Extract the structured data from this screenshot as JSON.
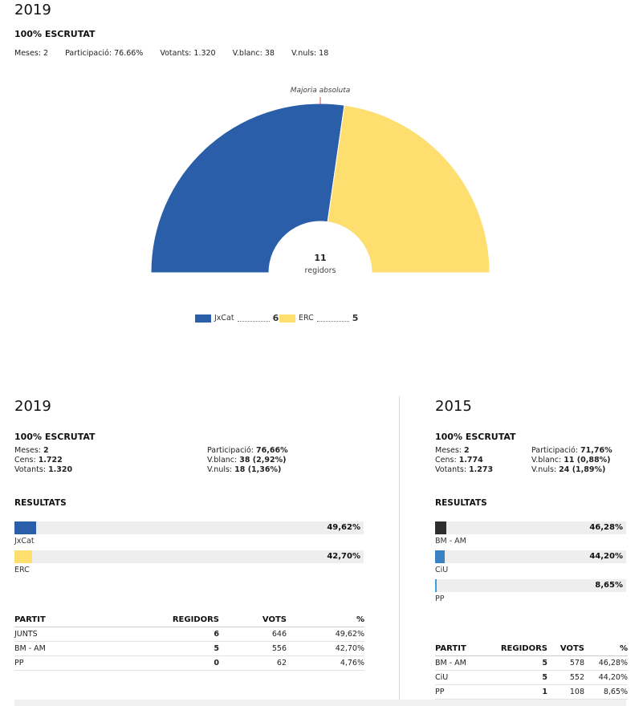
{
  "top": {
    "year": "2019",
    "escrutat": "100% ESCRUTAT",
    "stats": [
      "Meses: 2",
      "Participació: 76.66%",
      "Votants: 1.320",
      "V.blanc: 38",
      "V.nuls: 18"
    ]
  },
  "chart_data": {
    "type": "pie",
    "subtype": "hemicycle",
    "majority_label": "Majoria absoluta",
    "center_value": "11",
    "center_label": "regidors",
    "total_seats": 11,
    "slices": [
      {
        "label": "JxCat",
        "value": 6,
        "color": "#2a5ea8"
      },
      {
        "label": "ERC",
        "value": 5,
        "color": "#fede6f"
      }
    ]
  },
  "left": {
    "year": "2019",
    "escrutat": "100% ESCRUTAT",
    "meses_label": "Meses:",
    "meses": "2",
    "cens_label": "Cens:",
    "cens": "1.722",
    "votants_label": "Votants:",
    "votants": "1.320",
    "participacio_label": "Participació:",
    "participacio": "76,66%",
    "vblanc_label": "V.blanc:",
    "vblanc": "38 (2,92%)",
    "vnuls_label": "V.nuls:",
    "vnuls": "18 (1,36%)",
    "resultats": "RESULTATS",
    "bars": [
      {
        "label": "JxCat",
        "pct": "49,62%",
        "fill": 0.062,
        "color": "#2a5ea8"
      },
      {
        "label": "ERC",
        "pct": "42,70%",
        "fill": 0.05,
        "color": "#fede6f"
      }
    ],
    "table": {
      "headers": [
        "PARTIT",
        "REGIDORS",
        "VOTS",
        "%"
      ],
      "rows": [
        [
          "JUNTS",
          "6",
          "646",
          "49,62%"
        ],
        [
          "BM - AM",
          "5",
          "556",
          "42,70%"
        ],
        [
          "PP",
          "0",
          "62",
          "4,76%"
        ]
      ]
    }
  },
  "right": {
    "year": "2015",
    "escrutat": "100% ESCRUTAT",
    "meses_label": "Meses:",
    "meses": "2",
    "cens_label": "Cens:",
    "cens": "1.774",
    "votants_label": "Votants:",
    "votants": "1.273",
    "participacio_label": "Participació:",
    "participacio": "71,76%",
    "vblanc_label": "V.blanc:",
    "vblanc": "11 (0,88%)",
    "vnuls_label": "V.nuls:",
    "vnuls": "24 (1,89%)",
    "resultats": "RESULTATS",
    "bars": [
      {
        "label": "BM - AM",
        "pct": "46,28%",
        "fill": 0.058,
        "color": "#2e2e2e"
      },
      {
        "label": "CiU",
        "pct": "44,20%",
        "fill": 0.052,
        "color": "#3a82c4"
      },
      {
        "label": "PP",
        "pct": "8,65%",
        "fill": 0.01,
        "color": "#3aa0dc"
      }
    ],
    "table": {
      "headers": [
        "PARTIT",
        "REGIDORS",
        "VOTS",
        "%"
      ],
      "rows": [
        [
          "BM - AM",
          "5",
          "578",
          "46,28%"
        ],
        [
          "CiU",
          "5",
          "552",
          "44,20%"
        ],
        [
          "PP",
          "1",
          "108",
          "8,65%"
        ]
      ]
    }
  }
}
